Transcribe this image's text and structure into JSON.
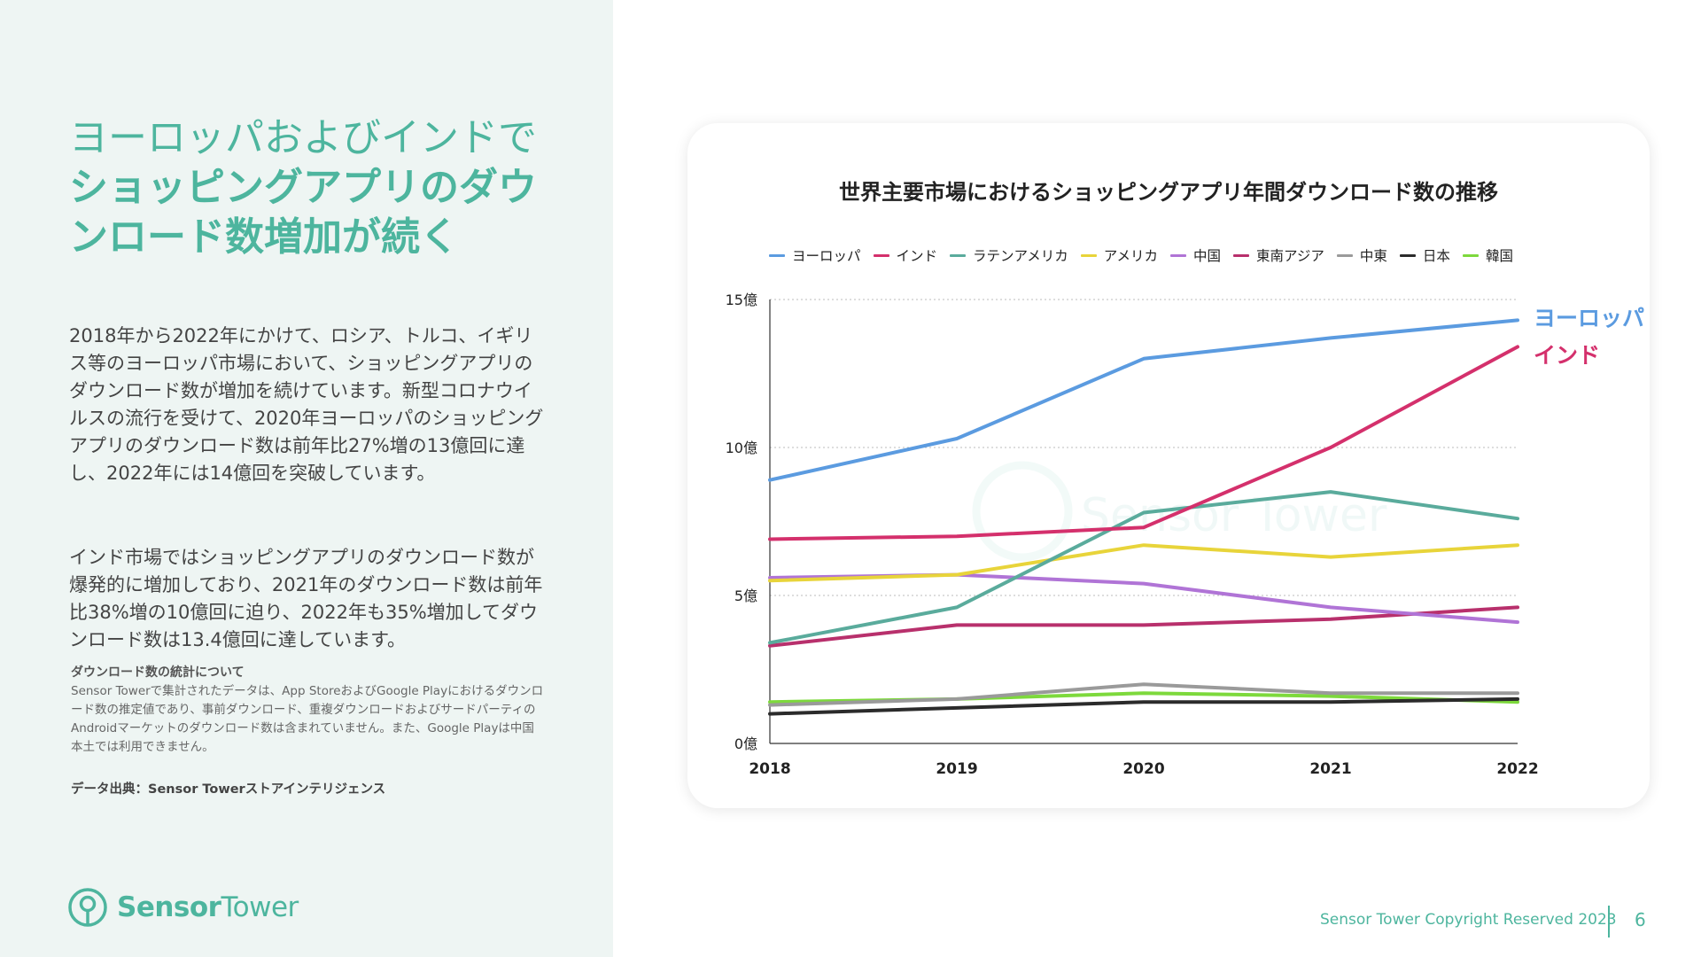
{
  "headline": {
    "line1": "ヨーロッパおよびインドで",
    "line2": "ショッピングアプリのダウ",
    "line3": "ンロード数増加が続く"
  },
  "paragraphs": [
    "2018年から2022年にかけて、ロシア、トルコ、イギリス等のヨーロッパ市場において、ショッピングアプリのダウンロード数が増加を続けています。新型コロナウイルスの流行を受けて、2020年ヨーロッパのショッピングアプリのダウンロード数は前年比27%増の13億回に達し、2022年には14億回を突破しています。",
    "インド市場ではショッピングアプリのダウンロード数が爆発的に増加しており、2021年のダウンロード数は前年比38%増の10億回に迫り、2022年も35%増加してダウンロード数は13.4億回に達しています。"
  ],
  "note": {
    "title": "ダウンロード数の統計について",
    "body": "Sensor Towerで集計されたデータは、App StoreおよびGoogle Playにおけるダウンロード数の推定値であり、事前ダウンロード、重複ダウンロードおよびサードパーティのAndroidマーケットのダウンロード数は含まれていません。また、Google Playは中国本土では利用できません。"
  },
  "source": "データ出典：Sensor Towerストアインテリジェンス",
  "logo": {
    "part1": "Sensor",
    "part2": "Tower"
  },
  "footer": {
    "copyright": "Sensor Tower Copyright Reserved 2023",
    "page": "6"
  },
  "watermark": "Sensor Tower",
  "chart_data": {
    "type": "line",
    "title": "世界主要市場におけるショッピングアプリ年間ダウンロード数の推移",
    "x": [
      "2018",
      "2019",
      "2020",
      "2021",
      "2022"
    ],
    "y_ticks": [
      "0億",
      "5億",
      "10億",
      "15億"
    ],
    "ylim": [
      0,
      15
    ],
    "grid": "horizontal dotted",
    "legend_position": "top",
    "series": [
      {
        "name": "ヨーロッパ",
        "color": "#5b9be0",
        "values": [
          8.9,
          10.3,
          13.0,
          13.7,
          14.3
        ]
      },
      {
        "name": "インド",
        "color": "#d4306c",
        "values": [
          6.9,
          7.0,
          7.3,
          10.0,
          13.4
        ]
      },
      {
        "name": "ラテンアメリカ",
        "color": "#5aab9c",
        "values": [
          3.4,
          4.6,
          7.8,
          8.5,
          7.6
        ]
      },
      {
        "name": "アメリカ",
        "color": "#e8d43a",
        "values": [
          5.5,
          5.7,
          6.7,
          6.3,
          6.7
        ]
      },
      {
        "name": "中国",
        "color": "#b074d6",
        "values": [
          5.6,
          5.7,
          5.4,
          4.6,
          4.1
        ]
      },
      {
        "name": "東南アジア",
        "color": "#b8306c",
        "values": [
          3.3,
          4.0,
          4.0,
          4.2,
          4.6
        ]
      },
      {
        "name": "中東",
        "color": "#9a9a9a",
        "values": [
          1.3,
          1.5,
          2.0,
          1.7,
          1.7
        ]
      },
      {
        "name": "日本",
        "color": "#2b2b2b",
        "values": [
          1.0,
          1.2,
          1.4,
          1.4,
          1.5
        ]
      },
      {
        "name": "韓国",
        "color": "#7dd93c",
        "values": [
          1.4,
          1.5,
          1.7,
          1.6,
          1.4
        ]
      }
    ],
    "end_labels": [
      {
        "text": "ヨーロッパ",
        "color": "#5b9be0"
      },
      {
        "text": "インド",
        "color": "#d4306c"
      }
    ]
  }
}
